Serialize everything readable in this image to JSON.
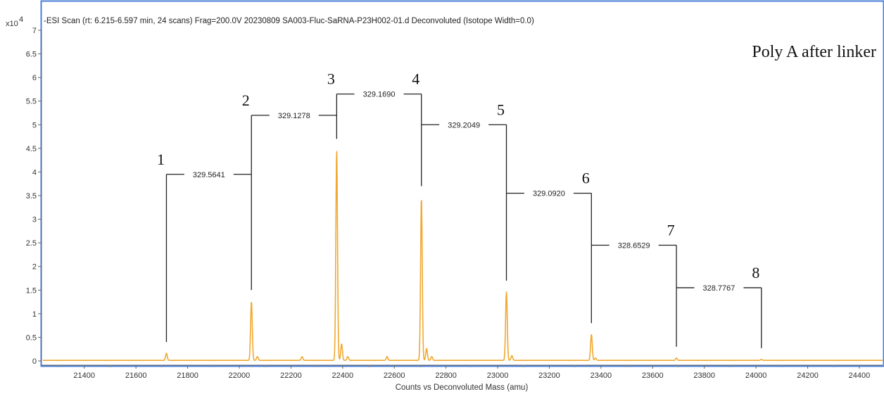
{
  "header": {
    "title": "-ESI Scan (rt: 6.215-6.597 min, 24 scans) Frag=200.0V 20230809 SA003-Fluc-SaRNA-P23H002-01.d  Deconvoluted (Isotope Width=0.0)"
  },
  "colors": {
    "trace": "#f0a830",
    "frame_blue": "#4a7fd4",
    "bracket": "#222222"
  },
  "chart_data": {
    "type": "line",
    "title": "-ESI Scan (rt: 6.215-6.597 min, 24 scans) Frag=200.0V 20230809 SA003-Fluc-SaRNA-P23H002-01.d  Deconvoluted (Isotope Width=0.0)",
    "xlabel": "Counts vs  Deconvoluted Mass (amu)",
    "ylabel": "",
    "y_multiplier": "x10",
    "y_exponent": "4",
    "xlim": [
      21240,
      24490
    ],
    "ylim": [
      0,
      7
    ],
    "x_ticks": [
      "21400",
      "21600",
      "21800",
      "22000",
      "22200",
      "22400",
      "22600",
      "22800",
      "23000",
      "23200",
      "23400",
      "23600",
      "23800",
      "24000",
      "24200",
      "24400"
    ],
    "y_ticks": [
      "0",
      "0.5",
      "1",
      "1.5",
      "2",
      "2.5",
      "3",
      "3.5",
      "4",
      "4.5",
      "5",
      "5.5",
      "6",
      "6.5",
      "7"
    ],
    "annotation": "Poly A after linker",
    "peaks": [
      {
        "label": "1",
        "mass": 21718,
        "intensity": 0.15,
        "bracket_top": 3.95
      },
      {
        "label": "2",
        "mass": 22047,
        "intensity": 1.25,
        "bracket_top": 5.2
      },
      {
        "label": "3",
        "mass": 22377,
        "intensity": 4.45,
        "bracket_top": 5.65
      },
      {
        "label": "4",
        "mass": 22705,
        "intensity": 3.45,
        "bracket_top": 5.65
      },
      {
        "label": "5",
        "mass": 23034,
        "intensity": 1.45,
        "bracket_top": 5.0
      },
      {
        "label": "6",
        "mass": 23363,
        "intensity": 0.55,
        "bracket_top": 3.55
      },
      {
        "label": "7",
        "mass": 23692,
        "intensity": 0.05,
        "bracket_top": 2.45
      },
      {
        "label": "8",
        "mass": 24021,
        "intensity": 0.02,
        "bracket_top": 1.55
      }
    ],
    "minor_peaks": [
      {
        "mass": 22070,
        "intensity": 0.08
      },
      {
        "mass": 22243,
        "intensity": 0.08
      },
      {
        "mass": 22396,
        "intensity": 0.35
      },
      {
        "mass": 22420,
        "intensity": 0.08
      },
      {
        "mass": 22572,
        "intensity": 0.08
      },
      {
        "mass": 22725,
        "intensity": 0.25
      },
      {
        "mass": 22745,
        "intensity": 0.08
      },
      {
        "mass": 23055,
        "intensity": 0.1
      },
      {
        "mass": 23379,
        "intensity": 0.05
      }
    ],
    "differences": [
      {
        "label": "329.5641",
        "from": 0,
        "to": 1
      },
      {
        "label": "329.1278",
        "from": 1,
        "to": 2
      },
      {
        "label": "329.1690",
        "from": 2,
        "to": 3
      },
      {
        "label": "329.2049",
        "from": 3,
        "to": 4
      },
      {
        "label": "329.0920",
        "from": 4,
        "to": 5
      },
      {
        "label": "328.6529",
        "from": 5,
        "to": 6
      },
      {
        "label": "328.7767",
        "from": 6,
        "to": 7
      }
    ]
  }
}
